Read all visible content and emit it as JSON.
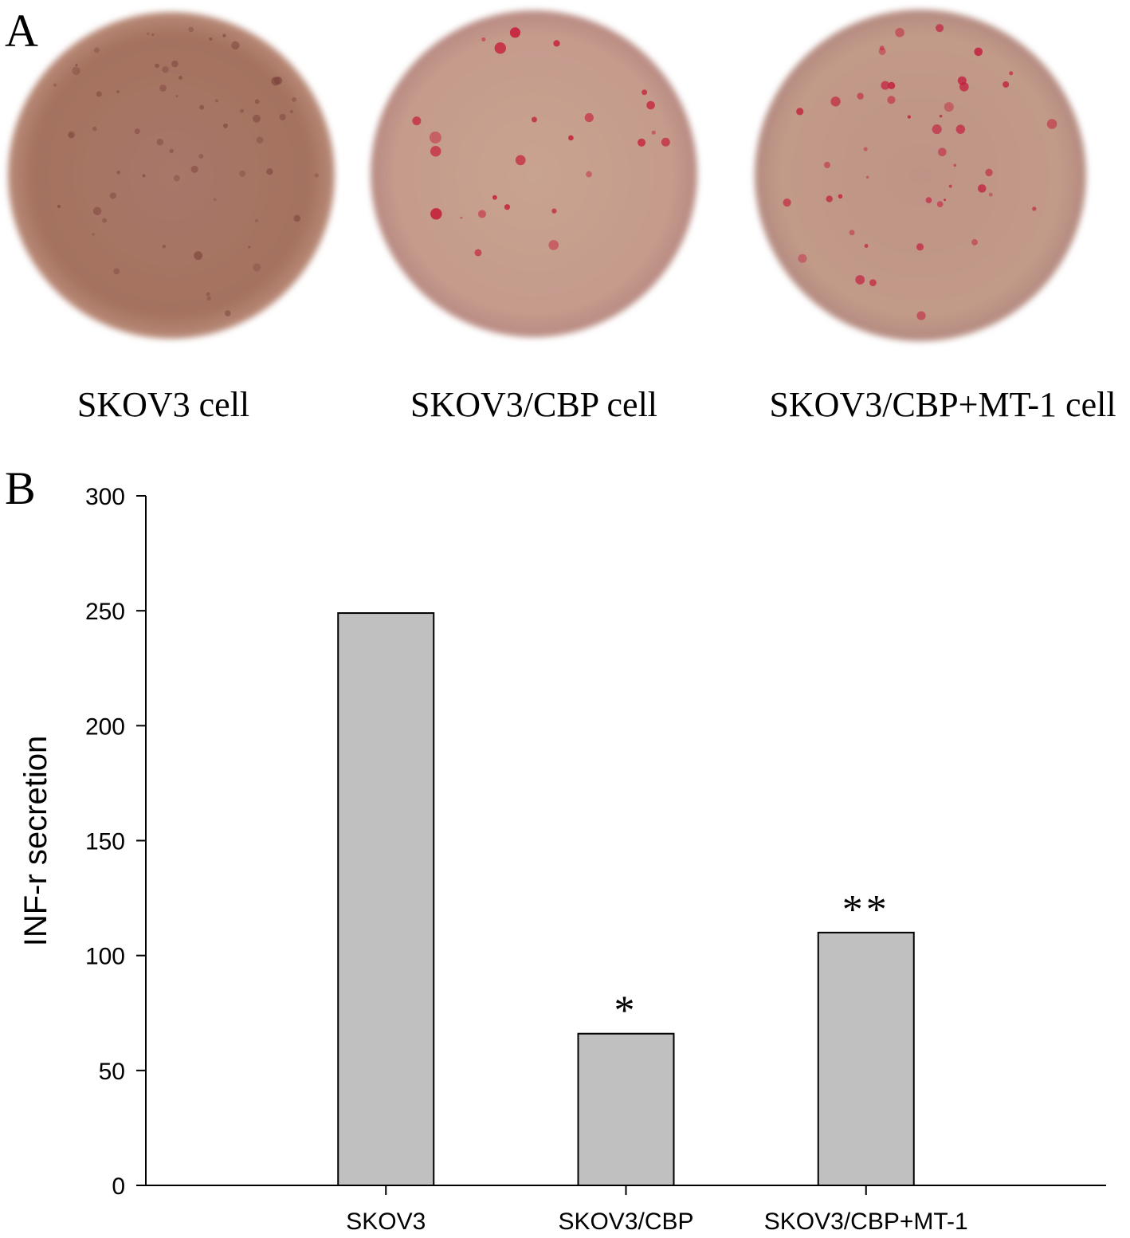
{
  "panel_a": {
    "label": "A",
    "wells": [
      "SKOV3 cell",
      "SKOV3/CBP cell",
      "SKOV3/CBP+MT-1 cell"
    ]
  },
  "panel_b": {
    "label": "B"
  },
  "chart_data": {
    "type": "bar",
    "y_label": "INF-r secretion",
    "categories": [
      "SKOV3",
      "SKOV3/CBP",
      "SKOV3/CBP+MT-1"
    ],
    "values": [
      249,
      66,
      110
    ],
    "annotations": [
      null,
      "*",
      "**"
    ],
    "color": "#c0c0c0",
    "ylim": [
      0,
      300
    ],
    "yticks": [
      0,
      50,
      100,
      150,
      200,
      250,
      300
    ],
    "grid": false
  }
}
